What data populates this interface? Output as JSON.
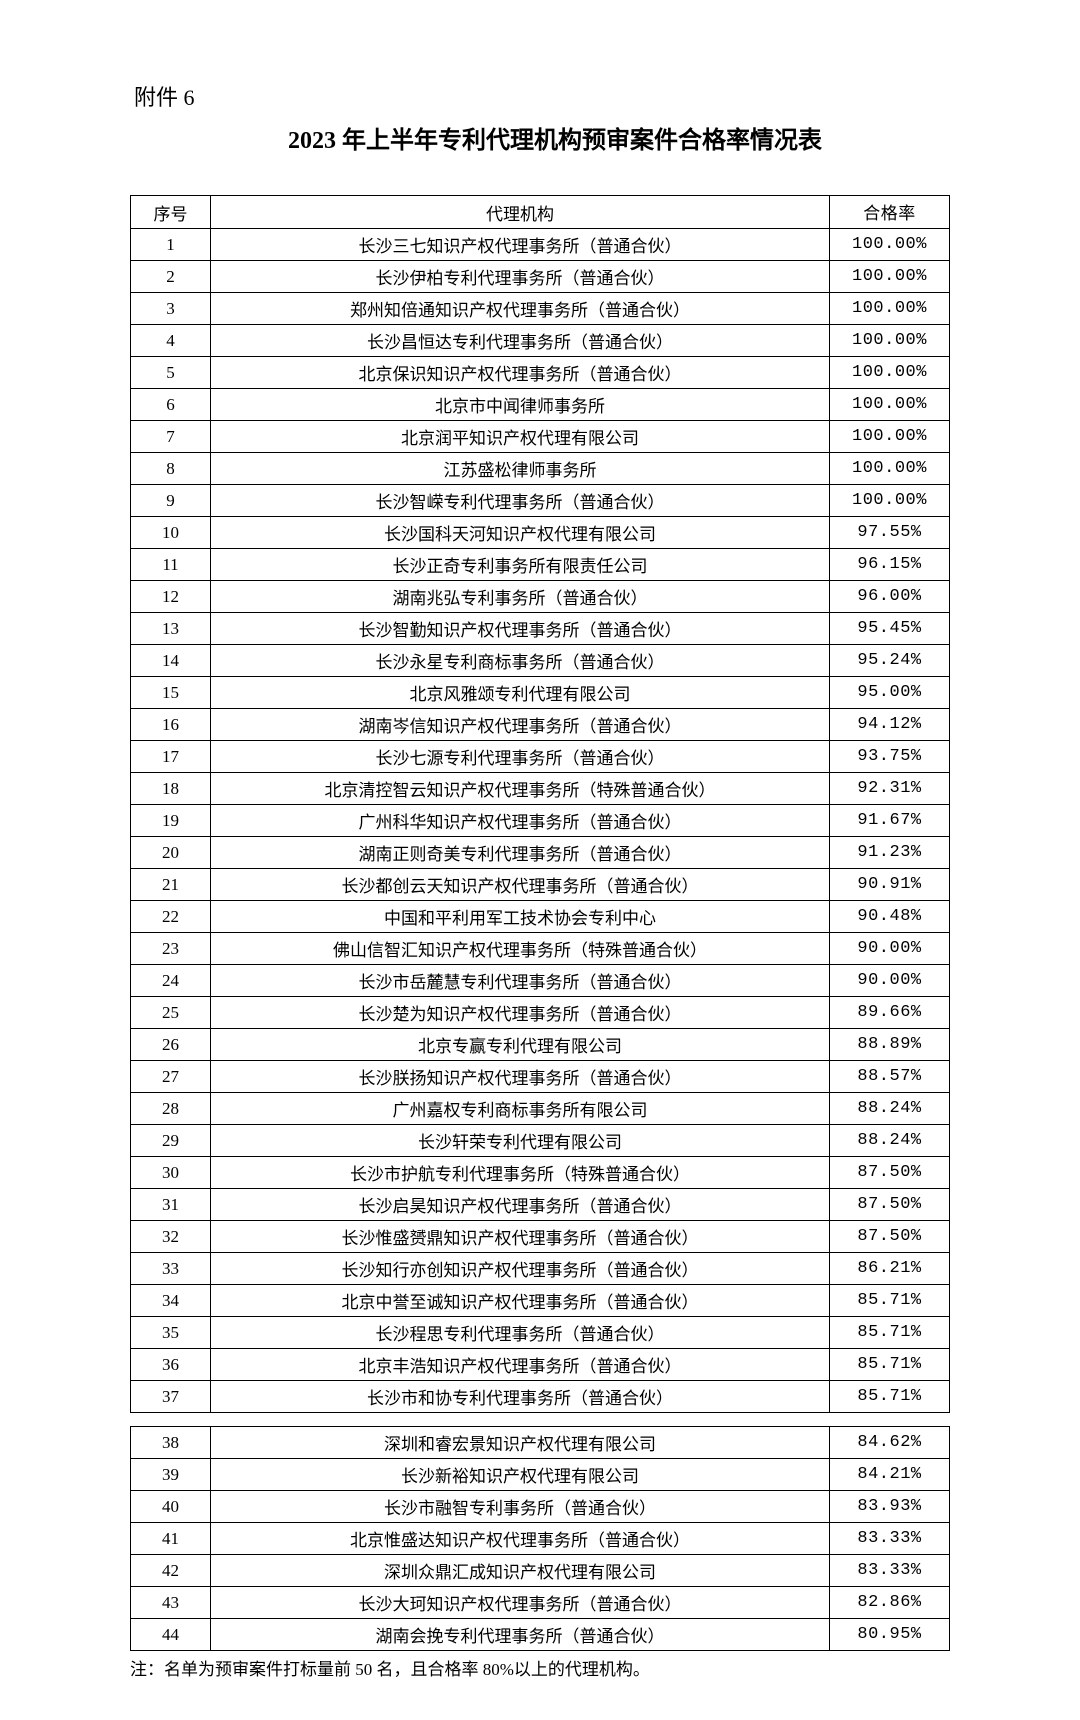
{
  "attachment_label": "附件 6",
  "title": "2023 年上半年专利代理机构预审案件合格率情况表",
  "table": {
    "columns": [
      "序号",
      "代理机构",
      "合格率"
    ],
    "rows_block1": [
      [
        "1",
        "长沙三七知识产权代理事务所（普通合伙）",
        "100.00%"
      ],
      [
        "2",
        "长沙伊柏专利代理事务所（普通合伙）",
        "100.00%"
      ],
      [
        "3",
        "郑州知倍通知识产权代理事务所（普通合伙）",
        "100.00%"
      ],
      [
        "4",
        "长沙昌恒达专利代理事务所（普通合伙）",
        "100.00%"
      ],
      [
        "5",
        "北京保识知识产权代理事务所（普通合伙）",
        "100.00%"
      ],
      [
        "6",
        "北京市中闻律师事务所",
        "100.00%"
      ],
      [
        "7",
        "北京润平知识产权代理有限公司",
        "100.00%"
      ],
      [
        "8",
        "江苏盛松律师事务所",
        "100.00%"
      ],
      [
        "9",
        "长沙智嵘专利代理事务所（普通合伙）",
        "100.00%"
      ],
      [
        "10",
        "长沙国科天河知识产权代理有限公司",
        "97.55%"
      ],
      [
        "11",
        "长沙正奇专利事务所有限责任公司",
        "96.15%"
      ],
      [
        "12",
        "湖南兆弘专利事务所（普通合伙）",
        "96.00%"
      ],
      [
        "13",
        "长沙智勤知识产权代理事务所（普通合伙）",
        "95.45%"
      ],
      [
        "14",
        "长沙永星专利商标事务所（普通合伙）",
        "95.24%"
      ],
      [
        "15",
        "北京风雅颂专利代理有限公司",
        "95.00%"
      ],
      [
        "16",
        "湖南岑信知识产权代理事务所（普通合伙）",
        "94.12%"
      ],
      [
        "17",
        "长沙七源专利代理事务所（普通合伙）",
        "93.75%"
      ],
      [
        "18",
        "北京清控智云知识产权代理事务所（特殊普通合伙）",
        "92.31%"
      ],
      [
        "19",
        "广州科华知识产权代理事务所（普通合伙）",
        "91.67%"
      ],
      [
        "20",
        "湖南正则奇美专利代理事务所（普通合伙）",
        "91.23%"
      ],
      [
        "21",
        "长沙都创云天知识产权代理事务所（普通合伙）",
        "90.91%"
      ],
      [
        "22",
        "中国和平利用军工技术协会专利中心",
        "90.48%"
      ],
      [
        "23",
        "佛山信智汇知识产权代理事务所（特殊普通合伙）",
        "90.00%"
      ],
      [
        "24",
        "长沙市岳麓慧专利代理事务所（普通合伙）",
        "90.00%"
      ],
      [
        "25",
        "长沙楚为知识产权代理事务所（普通合伙）",
        "89.66%"
      ],
      [
        "26",
        "北京专赢专利代理有限公司",
        "88.89%"
      ],
      [
        "27",
        "长沙朕扬知识产权代理事务所（普通合伙）",
        "88.57%"
      ],
      [
        "28",
        "广州嘉权专利商标事务所有限公司",
        "88.24%"
      ],
      [
        "29",
        "长沙轩荣专利代理有限公司",
        "88.24%"
      ],
      [
        "30",
        "长沙市护航专利代理事务所（特殊普通合伙）",
        "87.50%"
      ],
      [
        "31",
        "长沙启昊知识产权代理事务所（普通合伙）",
        "87.50%"
      ],
      [
        "32",
        "长沙惟盛赟鼎知识产权代理事务所（普通合伙）",
        "87.50%"
      ],
      [
        "33",
        "长沙知行亦创知识产权代理事务所（普通合伙）",
        "86.21%"
      ],
      [
        "34",
        "北京中誉至诚知识产权代理事务所（普通合伙）",
        "85.71%"
      ],
      [
        "35",
        "长沙程思专利代理事务所（普通合伙）",
        "85.71%"
      ],
      [
        "36",
        "北京丰浩知识产权代理事务所（普通合伙）",
        "85.71%"
      ],
      [
        "37",
        "长沙市和协专利代理事务所（普通合伙）",
        "85.71%"
      ]
    ],
    "rows_block2": [
      [
        "38",
        "深圳和睿宏景知识产权代理有限公司",
        "84.62%"
      ],
      [
        "39",
        "长沙新裕知识产权代理有限公司",
        "84.21%"
      ],
      [
        "40",
        "长沙市融智专利事务所（普通合伙）",
        "83.93%"
      ],
      [
        "41",
        "北京惟盛达知识产权代理事务所（普通合伙）",
        "83.33%"
      ],
      [
        "42",
        "深圳众鼎汇成知识产权代理有限公司",
        "83.33%"
      ],
      [
        "43",
        "长沙大珂知识产权代理事务所（普通合伙）",
        "82.86%"
      ],
      [
        "44",
        "湖南会挽专利代理事务所（普通合伙）",
        "80.95%"
      ]
    ]
  },
  "footnote": "注：名单为预审案件打标量前 50 名，且合格率 80%以上的代理机构。",
  "styling": {
    "background_color": "#ffffff",
    "text_color": "#000000",
    "border_color": "#000000",
    "font_family": "SimSun",
    "title_fontsize": 24,
    "body_fontsize": 17,
    "col_widths": {
      "index": 80,
      "agency": "auto",
      "rate": 120
    }
  }
}
